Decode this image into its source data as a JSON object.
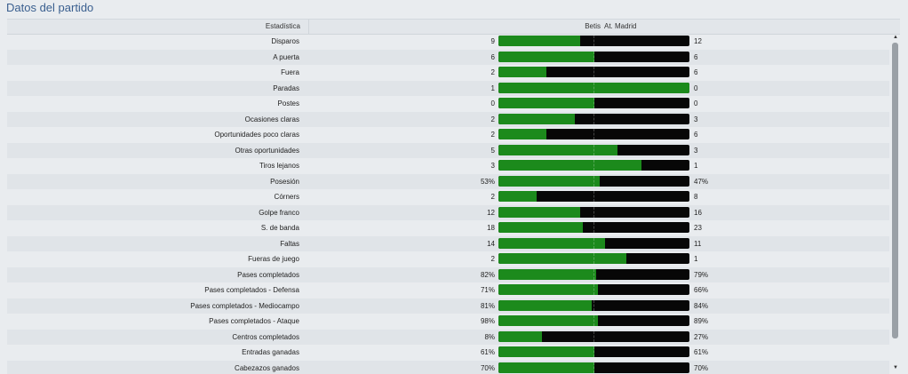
{
  "title": "Datos del partido",
  "header": {
    "stat_label": "Estadística",
    "home_team": "Betis",
    "away_team": "At. Madrid"
  },
  "colors": {
    "home": "#1c8a1c",
    "away": "#070707",
    "title": "#3a5f8f"
  },
  "icons": {
    "scroll_up": "triangle-up-icon",
    "scroll_down": "triangle-down-icon"
  },
  "stats": [
    {
      "label": "Disparos",
      "home": "9",
      "away": "12",
      "home_share": 0.43
    },
    {
      "label": "A puerta",
      "home": "6",
      "away": "6",
      "home_share": 0.5
    },
    {
      "label": "Fuera",
      "home": "2",
      "away": "6",
      "home_share": 0.25
    },
    {
      "label": "Paradas",
      "home": "1",
      "away": "0",
      "home_share": 1.0
    },
    {
      "label": "Postes",
      "home": "0",
      "away": "0",
      "home_share": 0.5
    },
    {
      "label": "Ocasiones claras",
      "home": "2",
      "away": "3",
      "home_share": 0.4
    },
    {
      "label": "Oportunidades poco claras",
      "home": "2",
      "away": "6",
      "home_share": 0.25
    },
    {
      "label": "Otras oportunidades",
      "home": "5",
      "away": "3",
      "home_share": 0.625
    },
    {
      "label": "Tiros lejanos",
      "home": "3",
      "away": "1",
      "home_share": 0.75
    },
    {
      "label": "Posesión",
      "home": "53%",
      "away": "47%",
      "home_share": 0.53
    },
    {
      "label": "Córners",
      "home": "2",
      "away": "8",
      "home_share": 0.2
    },
    {
      "label": "Golpe franco",
      "home": "12",
      "away": "16",
      "home_share": 0.43
    },
    {
      "label": "S. de banda",
      "home": "18",
      "away": "23",
      "home_share": 0.44
    },
    {
      "label": "Faltas",
      "home": "14",
      "away": "11",
      "home_share": 0.56
    },
    {
      "label": "Fueras de juego",
      "home": "2",
      "away": "1",
      "home_share": 0.67
    },
    {
      "label": "Pases completados",
      "home": "82%",
      "away": "79%",
      "home_share": 0.51
    },
    {
      "label": "Pases completados - Defensa",
      "home": "71%",
      "away": "66%",
      "home_share": 0.52
    },
    {
      "label": "Pases completados - Mediocampo",
      "home": "81%",
      "away": "84%",
      "home_share": 0.49
    },
    {
      "label": "Pases completados - Ataque",
      "home": "98%",
      "away": "89%",
      "home_share": 0.52
    },
    {
      "label": "Centros completados",
      "home": "8%",
      "away": "27%",
      "home_share": 0.23
    },
    {
      "label": "Entradas ganadas",
      "home": "61%",
      "away": "61%",
      "home_share": 0.5
    },
    {
      "label": "Cabezazos ganados",
      "home": "70%",
      "away": "70%",
      "home_share": 0.5
    }
  ]
}
